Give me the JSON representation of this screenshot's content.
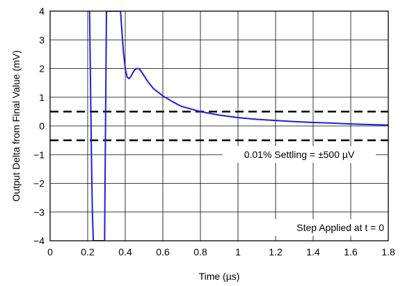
{
  "chart_data": {
    "type": "line",
    "xlabel": "Time (µs)",
    "ylabel": "Output Delta from Final Value (mV)",
    "xlim": [
      0,
      1.8
    ],
    "ylim": [
      -4,
      4
    ],
    "xticks": [
      0,
      0.2,
      0.4,
      0.6,
      0.8,
      1,
      1.2,
      1.4,
      1.6,
      1.8
    ],
    "xtick_labels": [
      "0",
      "0.2",
      "0.4",
      "0.6",
      "0.8",
      "1",
      "1.2",
      "1.4",
      "1.6",
      "1.8"
    ],
    "yticks": [
      -4,
      -3,
      -2,
      -1,
      0,
      1,
      2,
      3,
      4
    ],
    "ytick_labels": [
      "−4",
      "−3",
      "−2",
      "−1",
      "0",
      "1",
      "2",
      "3",
      "4"
    ],
    "grid": true,
    "series": [
      {
        "color": "#1f1fd6",
        "x": [
          0.21,
          0.215,
          0.22,
          0.225,
          0.23,
          0.235,
          0.24,
          0.25,
          0.26,
          0.27,
          0.28,
          0.285,
          0.29,
          0.295,
          0.3,
          0.31,
          0.32,
          0.33,
          0.34,
          0.35,
          0.36,
          0.37,
          0.375,
          0.38,
          0.39,
          0.4,
          0.41,
          0.42,
          0.43,
          0.44,
          0.45,
          0.46,
          0.47,
          0.48,
          0.49,
          0.5,
          0.52,
          0.55,
          0.6,
          0.65,
          0.7,
          0.8,
          0.9,
          1.0,
          1.1,
          1.2,
          1.3,
          1.4,
          1.5,
          1.6,
          1.7,
          1.8
        ],
        "y": [
          4.0,
          1.5,
          -1.0,
          -3.0,
          -4.0,
          -4.0,
          -4.0,
          -4.0,
          -4.0,
          -4.0,
          -4.0,
          -4.0,
          -4.0,
          0.0,
          4.0,
          4.0,
          4.0,
          4.0,
          4.0,
          4.0,
          4.0,
          4.0,
          4.0,
          3.5,
          2.6,
          2.0,
          1.7,
          1.65,
          1.72,
          1.85,
          1.95,
          2.0,
          2.0,
          1.95,
          1.85,
          1.75,
          1.55,
          1.3,
          1.05,
          0.85,
          0.68,
          0.5,
          0.38,
          0.29,
          0.23,
          0.19,
          0.15,
          0.12,
          0.1,
          0.07,
          0.05,
          0.03
        ]
      }
    ],
    "reference_lines": [
      {
        "y": 0.5,
        "style": "dashed",
        "color": "#000000"
      },
      {
        "y": -0.5,
        "style": "dashed",
        "color": "#000000"
      }
    ],
    "annotations": [
      {
        "text": "0.01% Settling = ±500 µV"
      },
      {
        "text": "Step Applied at t = 0"
      }
    ]
  }
}
